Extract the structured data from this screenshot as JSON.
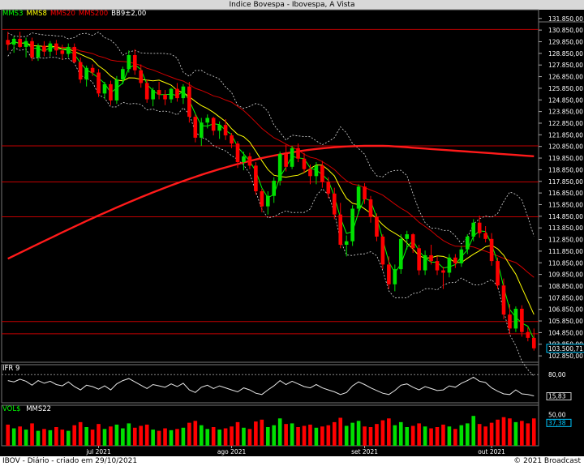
{
  "window": {
    "title": "Indice Bovespa - Ibovespa, A Vista"
  },
  "legend": {
    "items": [
      {
        "label": "MMS3",
        "color": "#00ff00"
      },
      {
        "label": "MMS8",
        "color": "#ffff00"
      },
      {
        "label": "MMS20",
        "color": "#ff0000"
      },
      {
        "label": "MMS200",
        "color": "#ff0000"
      },
      {
        "label": "BB9±2,00",
        "color": "#ffffff"
      }
    ]
  },
  "ifr_panel": {
    "label": "IFR 9",
    "tick_top": "80,00",
    "tick_value": "15,83"
  },
  "vol_panel": {
    "label": "VOL$",
    "ma_label": "MMS22",
    "tick_value": "37,38",
    "tick_top": "50,00"
  },
  "footer": {
    "left": "IBOV - Diário - criado em 29/10/2021",
    "right": "© 2021 Broadcast"
  },
  "colors": {
    "up": "#00e000",
    "down": "#ff0000",
    "background": "#000000",
    "hline": "#c00000",
    "axis_text": "#ffffff",
    "last_price_box": "#00c8ff"
  },
  "chart_data": {
    "type": "candlestick",
    "y_ticks": [
      "131.850,00",
      "130.850,00",
      "129.850,00",
      "128.850,00",
      "127.850,00",
      "126.850,00",
      "125.850,00",
      "124.850,00",
      "123.850,00",
      "122.850,00",
      "121.850,00",
      "120.850,00",
      "119.850,00",
      "118.850,00",
      "117.850,00",
      "116.850,00",
      "115.850,00",
      "114.850,00",
      "113.850,00",
      "112.850,00",
      "111.850,00",
      "110.850,00",
      "109.850,00",
      "108.850,00",
      "107.850,00",
      "106.850,00",
      "105.850,00",
      "104.850,00",
      "103.850,00",
      "102.850,00"
    ],
    "y_tick_values": [
      131850,
      130850,
      129850,
      128850,
      127850,
      126850,
      125850,
      124850,
      123850,
      122850,
      121850,
      120850,
      119850,
      118850,
      117850,
      116850,
      115850,
      114850,
      113850,
      112850,
      111850,
      110850,
      109850,
      108850,
      107850,
      106850,
      105850,
      104850,
      103850,
      102850
    ],
    "ylim": [
      102300,
      132600
    ],
    "last_price_label": "103.500,71",
    "last_price": 103500.71,
    "x_month_labels": [
      {
        "label": "jul 2021",
        "index": 15
      },
      {
        "label": "ago 2021",
        "index": 37
      },
      {
        "label": "set 2021",
        "index": 59
      },
      {
        "label": "out 2021",
        "index": 80
      }
    ],
    "hlines": [
      130900,
      120900,
      117800,
      114800,
      105800,
      104750
    ],
    "ohlc": [
      [
        130000,
        130700,
        129100,
        129600
      ],
      [
        129600,
        130300,
        128900,
        130100
      ],
      [
        130100,
        130700,
        129300,
        129400
      ],
      [
        129400,
        130200,
        128500,
        129900
      ],
      [
        129900,
        130200,
        128200,
        128500
      ],
      [
        128500,
        129700,
        128200,
        129500
      ],
      [
        129500,
        129900,
        128600,
        129000
      ],
      [
        129000,
        129900,
        128600,
        129700
      ],
      [
        129700,
        130000,
        128700,
        129100
      ],
      [
        129100,
        129600,
        128300,
        128800
      ],
      [
        128800,
        129700,
        128500,
        129400
      ],
      [
        129400,
        129700,
        128000,
        128100
      ],
      [
        128100,
        128500,
        126300,
        126600
      ],
      [
        126600,
        127800,
        126000,
        127600
      ],
      [
        127600,
        127900,
        126900,
        127200
      ],
      [
        127200,
        127500,
        125100,
        125400
      ],
      [
        125400,
        126400,
        124900,
        126200
      ],
      [
        126200,
        126500,
        124400,
        124800
      ],
      [
        124800,
        126900,
        124500,
        126600
      ],
      [
        126600,
        127700,
        126200,
        127500
      ],
      [
        127500,
        129100,
        127200,
        128700
      ],
      [
        128700,
        129200,
        127000,
        127400
      ],
      [
        127400,
        127900,
        125900,
        126300
      ],
      [
        126300,
        126600,
        124600,
        124900
      ],
      [
        124900,
        125900,
        124300,
        125700
      ],
      [
        125700,
        126400,
        124900,
        125300
      ],
      [
        125300,
        125700,
        124400,
        124900
      ],
      [
        124900,
        125900,
        124600,
        125800
      ],
      [
        125800,
        126300,
        124700,
        125000
      ],
      [
        125000,
        126200,
        124500,
        126000
      ],
      [
        126000,
        126400,
        122900,
        123400
      ],
      [
        123400,
        123600,
        121200,
        121600
      ],
      [
        121600,
        123300,
        120900,
        122900
      ],
      [
        122900,
        123600,
        122400,
        123300
      ],
      [
        123300,
        123400,
        121800,
        122200
      ],
      [
        122200,
        123000,
        121500,
        122700
      ],
      [
        122700,
        123200,
        121400,
        121800
      ],
      [
        121800,
        122000,
        120700,
        121100
      ],
      [
        121100,
        121300,
        119000,
        119500
      ],
      [
        119500,
        120400,
        118800,
        120000
      ],
      [
        120000,
        120300,
        118900,
        119200
      ],
      [
        119200,
        119500,
        116700,
        117000
      ],
      [
        117000,
        117200,
        115200,
        115700
      ],
      [
        115700,
        117000,
        115000,
        116600
      ],
      [
        116600,
        118200,
        116000,
        117900
      ],
      [
        117900,
        120400,
        117500,
        120200
      ],
      [
        120200,
        121000,
        118700,
        119100
      ],
      [
        119100,
        120900,
        118900,
        120700
      ],
      [
        120700,
        121100,
        119500,
        119800
      ],
      [
        119800,
        120300,
        118600,
        118900
      ],
      [
        118900,
        119300,
        117600,
        118300
      ],
      [
        118300,
        119500,
        117600,
        119200
      ],
      [
        119200,
        119600,
        117300,
        117800
      ],
      [
        117800,
        118200,
        116400,
        116800
      ],
      [
        116800,
        117300,
        114600,
        115000
      ],
      [
        115000,
        116000,
        112100,
        112400
      ],
      [
        112400,
        113200,
        111400,
        112700
      ],
      [
        112700,
        115800,
        112300,
        115500
      ],
      [
        115500,
        117600,
        115100,
        117400
      ],
      [
        117400,
        117700,
        115900,
        116300
      ],
      [
        116300,
        116600,
        114300,
        114800
      ],
      [
        114800,
        115100,
        112700,
        113100
      ],
      [
        113100,
        113300,
        110300,
        110700
      ],
      [
        110700,
        111400,
        108600,
        109000
      ],
      [
        109000,
        110700,
        108400,
        110300
      ],
      [
        110300,
        113300,
        109900,
        112900
      ],
      [
        112900,
        113600,
        112000,
        113300
      ],
      [
        113300,
        113400,
        111700,
        112100
      ],
      [
        112100,
        112400,
        109800,
        110200
      ],
      [
        110200,
        111900,
        109800,
        111500
      ],
      [
        111500,
        112400,
        110700,
        111000
      ],
      [
        111000,
        111400,
        109800,
        110200
      ],
      [
        110200,
        110500,
        108600,
        110000
      ],
      [
        110000,
        111600,
        109600,
        111300
      ],
      [
        111300,
        111600,
        110400,
        110800
      ],
      [
        110800,
        112300,
        110500,
        112000
      ],
      [
        112000,
        113300,
        111600,
        113100
      ],
      [
        113100,
        114600,
        112700,
        114300
      ],
      [
        114300,
        114900,
        113000,
        113400
      ],
      [
        113400,
        114000,
        112600,
        112900
      ],
      [
        112900,
        113400,
        110600,
        111000
      ],
      [
        111000,
        111300,
        108600,
        108900
      ],
      [
        108900,
        109500,
        106000,
        106400
      ],
      [
        106400,
        107300,
        104800,
        105200
      ],
      [
        105200,
        107100,
        104900,
        106900
      ],
      [
        106900,
        107200,
        104500,
        104900
      ],
      [
        104900,
        105300,
        104100,
        104400
      ],
      [
        104400,
        105200,
        103300,
        103500
      ]
    ],
    "ifr_values": [
      62,
      58,
      66,
      60,
      48,
      62,
      54,
      60,
      50,
      46,
      58,
      44,
      34,
      48,
      44,
      36,
      46,
      34,
      52,
      62,
      68,
      58,
      48,
      38,
      50,
      46,
      42,
      52,
      44,
      54,
      34,
      26,
      42,
      48,
      38,
      46,
      40,
      34,
      28,
      40,
      34,
      24,
      20,
      34,
      46,
      62,
      50,
      60,
      52,
      44,
      40,
      50,
      40,
      34,
      28,
      20,
      26,
      46,
      58,
      50,
      40,
      32,
      24,
      20,
      32,
      48,
      52,
      42,
      34,
      44,
      38,
      32,
      34,
      46,
      42,
      54,
      62,
      72,
      60,
      56,
      40,
      30,
      22,
      20,
      34,
      22,
      20,
      15.83
    ],
    "volume": [
      {
        "v": 34,
        "up": false
      },
      {
        "v": 28,
        "up": true
      },
      {
        "v": 31,
        "up": false
      },
      {
        "v": 26,
        "up": true
      },
      {
        "v": 36,
        "up": false
      },
      {
        "v": 24,
        "up": true
      },
      {
        "v": 27,
        "up": false
      },
      {
        "v": 25,
        "up": true
      },
      {
        "v": 30,
        "up": false
      },
      {
        "v": 26,
        "up": false
      },
      {
        "v": 24,
        "up": true
      },
      {
        "v": 33,
        "up": false
      },
      {
        "v": 38,
        "up": false
      },
      {
        "v": 30,
        "up": true
      },
      {
        "v": 26,
        "up": false
      },
      {
        "v": 35,
        "up": false
      },
      {
        "v": 27,
        "up": true
      },
      {
        "v": 31,
        "up": false
      },
      {
        "v": 34,
        "up": true
      },
      {
        "v": 28,
        "up": true
      },
      {
        "v": 36,
        "up": true
      },
      {
        "v": 29,
        "up": false
      },
      {
        "v": 32,
        "up": false
      },
      {
        "v": 34,
        "up": false
      },
      {
        "v": 26,
        "up": true
      },
      {
        "v": 24,
        "up": false
      },
      {
        "v": 28,
        "up": false
      },
      {
        "v": 25,
        "up": true
      },
      {
        "v": 27,
        "up": false
      },
      {
        "v": 29,
        "up": true
      },
      {
        "v": 37,
        "up": false
      },
      {
        "v": 40,
        "up": false
      },
      {
        "v": 33,
        "up": true
      },
      {
        "v": 27,
        "up": true
      },
      {
        "v": 30,
        "up": false
      },
      {
        "v": 26,
        "up": true
      },
      {
        "v": 28,
        "up": false
      },
      {
        "v": 31,
        "up": false
      },
      {
        "v": 38,
        "up": false
      },
      {
        "v": 29,
        "up": true
      },
      {
        "v": 27,
        "up": false
      },
      {
        "v": 39,
        "up": false
      },
      {
        "v": 42,
        "up": false
      },
      {
        "v": 30,
        "up": true
      },
      {
        "v": 33,
        "up": true
      },
      {
        "v": 44,
        "up": true
      },
      {
        "v": 35,
        "up": false
      },
      {
        "v": 36,
        "up": true
      },
      {
        "v": 30,
        "up": false
      },
      {
        "v": 32,
        "up": false
      },
      {
        "v": 34,
        "up": false
      },
      {
        "v": 29,
        "up": true
      },
      {
        "v": 31,
        "up": false
      },
      {
        "v": 33,
        "up": false
      },
      {
        "v": 38,
        "up": false
      },
      {
        "v": 45,
        "up": false
      },
      {
        "v": 32,
        "up": true
      },
      {
        "v": 37,
        "up": true
      },
      {
        "v": 40,
        "up": true
      },
      {
        "v": 31,
        "up": false
      },
      {
        "v": 30,
        "up": false
      },
      {
        "v": 35,
        "up": false
      },
      {
        "v": 41,
        "up": false
      },
      {
        "v": 44,
        "up": false
      },
      {
        "v": 33,
        "up": true
      },
      {
        "v": 38,
        "up": true
      },
      {
        "v": 30,
        "up": true
      },
      {
        "v": 32,
        "up": false
      },
      {
        "v": 36,
        "up": false
      },
      {
        "v": 31,
        "up": true
      },
      {
        "v": 28,
        "up": false
      },
      {
        "v": 30,
        "up": false
      },
      {
        "v": 34,
        "up": false
      },
      {
        "v": 31,
        "up": true
      },
      {
        "v": 27,
        "up": false
      },
      {
        "v": 33,
        "up": true
      },
      {
        "v": 36,
        "up": true
      },
      {
        "v": 48,
        "up": true
      },
      {
        "v": 35,
        "up": false
      },
      {
        "v": 31,
        "up": false
      },
      {
        "v": 37,
        "up": false
      },
      {
        "v": 42,
        "up": false
      },
      {
        "v": 46,
        "up": false
      },
      {
        "v": 44,
        "up": false
      },
      {
        "v": 38,
        "up": true
      },
      {
        "v": 40,
        "up": false
      },
      {
        "v": 36,
        "up": false
      },
      {
        "v": 44,
        "up": false
      }
    ]
  }
}
